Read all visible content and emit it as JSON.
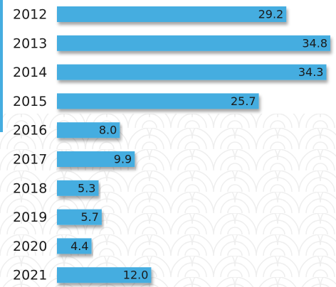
{
  "chart_data": {
    "type": "bar",
    "orientation": "horizontal",
    "categories": [
      "2012",
      "2013",
      "2014",
      "2015",
      "2016",
      "2017",
      "2018",
      "2019",
      "2020",
      "2021"
    ],
    "values": [
      29.2,
      34.8,
      34.3,
      25.7,
      8.0,
      9.9,
      5.3,
      5.7,
      4.4,
      12.0
    ],
    "value_labels": [
      "29.2",
      "34.8",
      "34.3",
      "25.7",
      "8.0",
      "9.9",
      "5.3",
      "5.7",
      "4.4",
      "12.0"
    ],
    "color": "#45ade0"
  }
}
